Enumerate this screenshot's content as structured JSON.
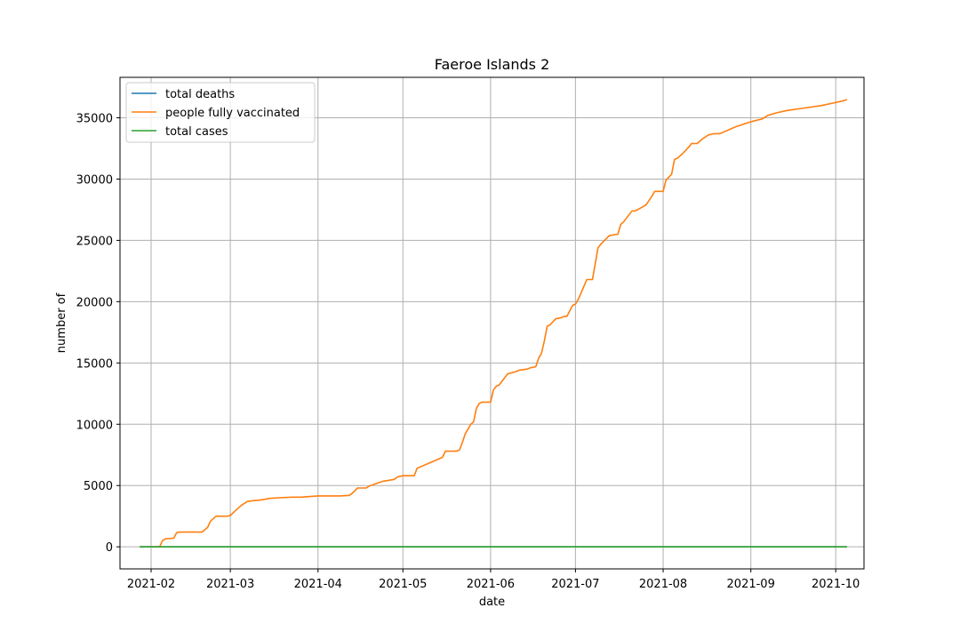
{
  "chart_data": {
    "type": "line",
    "title": "Faeroe Islands 2",
    "xlabel": "date",
    "ylabel": "number of",
    "xlim": [
      "2021-01-21",
      "2021-10-11"
    ],
    "ylim": [
      -1800,
      38300
    ],
    "x_ticks": [
      "2021-02-01",
      "2021-03-01",
      "2021-04-01",
      "2021-05-01",
      "2021-06-01",
      "2021-07-01",
      "2021-08-01",
      "2021-09-01",
      "2021-10-01"
    ],
    "x_tick_labels": [
      "2021-02",
      "2021-03",
      "2021-04",
      "2021-05",
      "2021-06",
      "2021-07",
      "2021-08",
      "2021-09",
      "2021-10"
    ],
    "y_ticks": [
      0,
      5000,
      10000,
      15000,
      20000,
      25000,
      30000,
      35000
    ],
    "grid": true,
    "legend": "top-left",
    "series": [
      {
        "name": "total deaths",
        "color": "#1f77b4",
        "x": [
          "2021-01-28",
          "2021-10-05"
        ],
        "y": [
          1,
          1
        ]
      },
      {
        "name": "people fully vaccinated",
        "color": "#ff7f0e",
        "x": [
          "2021-01-28",
          "2021-02-04",
          "2021-02-05",
          "2021-02-06",
          "2021-02-09",
          "2021-02-10",
          "2021-02-11",
          "2021-02-16",
          "2021-02-19",
          "2021-02-20",
          "2021-02-21",
          "2021-02-22",
          "2021-02-24",
          "2021-02-28",
          "2021-03-01",
          "2021-03-03",
          "2021-03-05",
          "2021-03-07",
          "2021-03-10",
          "2021-03-11",
          "2021-03-15",
          "2021-03-18",
          "2021-03-23",
          "2021-03-26",
          "2021-04-01",
          "2021-04-09",
          "2021-04-12",
          "2021-04-13",
          "2021-04-15",
          "2021-04-18",
          "2021-04-19",
          "2021-04-22",
          "2021-04-24",
          "2021-04-28",
          "2021-04-29",
          "2021-05-01",
          "2021-05-02",
          "2021-05-05",
          "2021-05-06",
          "2021-05-08",
          "2021-05-10",
          "2021-05-12",
          "2021-05-15",
          "2021-05-16",
          "2021-05-20",
          "2021-05-21",
          "2021-05-22",
          "2021-05-23",
          "2021-05-25",
          "2021-05-26",
          "2021-05-27",
          "2021-05-28",
          "2021-05-29",
          "2021-06-01",
          "2021-06-02",
          "2021-06-03",
          "2021-06-04",
          "2021-06-06",
          "2021-06-07",
          "2021-06-10",
          "2021-06-11",
          "2021-06-14",
          "2021-06-15",
          "2021-06-17",
          "2021-06-18",
          "2021-06-19",
          "2021-06-20",
          "2021-06-21",
          "2021-06-22",
          "2021-06-24",
          "2021-06-26",
          "2021-06-27",
          "2021-06-28",
          "2021-06-30",
          "2021-07-01",
          "2021-07-02",
          "2021-07-03",
          "2021-07-05",
          "2021-07-07",
          "2021-07-09",
          "2021-07-10",
          "2021-07-13",
          "2021-07-16",
          "2021-07-17",
          "2021-07-18",
          "2021-07-21",
          "2021-07-22",
          "2021-07-23",
          "2021-07-26",
          "2021-07-28",
          "2021-07-29",
          "2021-07-31",
          "2021-08-01",
          "2021-08-02",
          "2021-08-04",
          "2021-08-05",
          "2021-08-06",
          "2021-08-08",
          "2021-08-10",
          "2021-08-11",
          "2021-08-13",
          "2021-08-15",
          "2021-08-17",
          "2021-08-19",
          "2021-08-21",
          "2021-08-23",
          "2021-08-25",
          "2021-08-27",
          "2021-08-31",
          "2021-09-03",
          "2021-09-05",
          "2021-09-07",
          "2021-09-10",
          "2021-09-14",
          "2021-09-20",
          "2021-09-26",
          "2021-09-30",
          "2021-10-04",
          "2021-10-05"
        ],
        "y": [
          0,
          0,
          500,
          650,
          700,
          1150,
          1200,
          1200,
          1200,
          1400,
          1600,
          2100,
          2500,
          2500,
          2550,
          3000,
          3400,
          3700,
          3800,
          3800,
          3950,
          4000,
          4050,
          4050,
          4150,
          4150,
          4200,
          4350,
          4800,
          4800,
          4950,
          5200,
          5350,
          5500,
          5700,
          5800,
          5800,
          5800,
          6400,
          6600,
          6800,
          7000,
          7300,
          7800,
          7800,
          7900,
          8500,
          9200,
          10000,
          10200,
          11300,
          11700,
          11800,
          11800,
          12800,
          13100,
          13200,
          13800,
          14100,
          14300,
          14400,
          14500,
          14600,
          14700,
          15400,
          15800,
          16800,
          18000,
          18100,
          18600,
          18700,
          18800,
          18800,
          19700,
          19800,
          20200,
          20700,
          21800,
          21800,
          24400,
          24700,
          25400,
          25500,
          26300,
          26500,
          27400,
          27400,
          27500,
          27900,
          28600,
          29000,
          29000,
          29000,
          29900,
          30400,
          31600,
          31700,
          32100,
          32600,
          32900,
          32900,
          33300,
          33600,
          33700,
          33700,
          33900,
          34100,
          34300,
          34600,
          34800,
          34900,
          35200,
          35400,
          35600,
          35800,
          36000,
          36200,
          36400,
          36500
        ]
      },
      {
        "name": "total cases",
        "color": "#2ca02c",
        "x": [
          "2021-01-28",
          "2021-10-05"
        ],
        "y": [
          0,
          0
        ]
      }
    ]
  }
}
